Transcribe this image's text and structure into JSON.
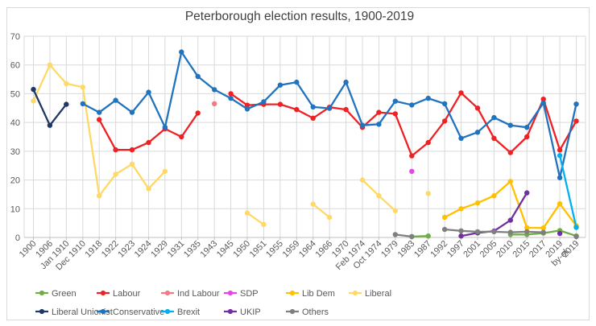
{
  "chart_data": {
    "type": "line",
    "title": "Peterborough election results, 1900-2019",
    "categories": [
      "1900",
      "1906",
      "Jan 1910",
      "Dec 1910",
      "1918",
      "1922",
      "1923",
      "1924",
      "1929",
      "1931",
      "1935",
      "1943",
      "1945",
      "1950",
      "1951",
      "1955",
      "1959",
      "1964",
      "1966",
      "1970",
      "Feb 1974",
      "Oct 1974",
      "1979",
      "1983",
      "1987",
      "1992",
      "1997",
      "2001",
      "2005",
      "2010",
      "2015",
      "2017",
      "2019\nby-el.",
      "2019"
    ],
    "y_axis": {
      "min": 0,
      "max": 70,
      "step": 10
    },
    "grid": true,
    "legend_position": "bottom",
    "series": [
      {
        "name": "Green",
        "color": "#70AD47",
        "values": [
          null,
          null,
          null,
          null,
          null,
          null,
          null,
          null,
          null,
          null,
          null,
          null,
          null,
          null,
          null,
          null,
          null,
          null,
          null,
          null,
          null,
          null,
          null,
          0.3,
          0.5,
          null,
          null,
          null,
          null,
          1,
          1,
          1.5,
          2.4,
          0.5
        ]
      },
      {
        "name": "Labour",
        "color": "#EE2125",
        "values": [
          null,
          null,
          null,
          null,
          41,
          30.5,
          30.5,
          33,
          37.8,
          35,
          43.3,
          null,
          50,
          46,
          46.3,
          46.3,
          44.5,
          41.5,
          45.3,
          44.5,
          38.3,
          43.5,
          43,
          28.4,
          33,
          40.5,
          50.3,
          45,
          34.5,
          29.5,
          35,
          48.1,
          30.4,
          40.5
        ]
      },
      {
        "name": "Ind Labour",
        "color": "#F07B85",
        "values": [
          null,
          null,
          null,
          null,
          null,
          null,
          null,
          null,
          null,
          null,
          null,
          46.5,
          null,
          null,
          null,
          null,
          null,
          null,
          null,
          null,
          null,
          null,
          null,
          null,
          null,
          null,
          null,
          null,
          null,
          null,
          null,
          null,
          null,
          null
        ]
      },
      {
        "name": "SDP",
        "color": "#E546E5",
        "values": [
          null,
          null,
          null,
          null,
          null,
          null,
          null,
          null,
          null,
          null,
          null,
          null,
          null,
          null,
          null,
          null,
          null,
          null,
          null,
          null,
          null,
          null,
          null,
          23,
          null,
          null,
          null,
          null,
          null,
          null,
          null,
          null,
          null,
          null
        ]
      },
      {
        "name": "Lib Dem",
        "color": "#FFC000",
        "values": [
          null,
          null,
          null,
          null,
          null,
          null,
          null,
          null,
          null,
          null,
          null,
          null,
          null,
          null,
          null,
          null,
          null,
          null,
          null,
          null,
          null,
          null,
          null,
          null,
          null,
          7,
          10,
          12,
          14.5,
          19.5,
          3.4,
          3.3,
          11.7,
          4.1
        ]
      },
      {
        "name": "Liberal",
        "color": "#FFD966",
        "values": [
          47.5,
          60,
          53.5,
          52.3,
          14.5,
          22,
          25.5,
          17,
          23,
          null,
          null,
          null,
          null,
          8.5,
          4.5,
          null,
          null,
          11.6,
          7,
          null,
          20,
          14.5,
          9.3,
          null,
          15.3,
          null,
          null,
          null,
          null,
          null,
          null,
          null,
          null,
          null
        ]
      },
      {
        "name": "Liberal Unionist",
        "color": "#1F3864",
        "values": [
          51.5,
          39,
          46.3,
          null,
          null,
          null,
          null,
          null,
          null,
          null,
          null,
          null,
          null,
          null,
          null,
          null,
          null,
          null,
          null,
          null,
          null,
          null,
          null,
          null,
          null,
          null,
          null,
          null,
          null,
          null,
          null,
          null,
          null,
          null
        ]
      },
      {
        "name": "Conservative",
        "color": "#2173BE",
        "values": [
          null,
          null,
          null,
          46.5,
          43.5,
          47.7,
          43.5,
          50.5,
          38.3,
          64.5,
          56,
          51.4,
          48.4,
          44.7,
          47.2,
          53,
          54,
          45.4,
          44.9,
          54,
          39,
          39.4,
          47.4,
          46.1,
          48.4,
          46.5,
          34.5,
          36.6,
          41.7,
          39,
          38.3,
          46.8,
          20.8,
          46.4
        ]
      },
      {
        "name": "Brexit",
        "color": "#00B0F0",
        "values": [
          null,
          null,
          null,
          null,
          null,
          null,
          null,
          null,
          null,
          null,
          null,
          null,
          null,
          null,
          null,
          null,
          null,
          null,
          null,
          null,
          null,
          null,
          null,
          null,
          null,
          null,
          null,
          null,
          null,
          null,
          null,
          null,
          28.5,
          3.5
        ]
      },
      {
        "name": "UKIP",
        "color": "#7030A0",
        "values": [
          null,
          null,
          null,
          null,
          null,
          null,
          null,
          null,
          null,
          null,
          null,
          null,
          null,
          null,
          null,
          null,
          null,
          null,
          null,
          null,
          null,
          null,
          null,
          null,
          null,
          null,
          0.5,
          1.6,
          2.2,
          6,
          15.5,
          null,
          1.4,
          null
        ]
      },
      {
        "name": "Others",
        "color": "#7F7F7F",
        "values": [
          null,
          null,
          null,
          null,
          null,
          null,
          null,
          null,
          null,
          null,
          null,
          null,
          null,
          null,
          null,
          null,
          null,
          null,
          null,
          null,
          null,
          null,
          1,
          0.3,
          null,
          2.8,
          2.3,
          2,
          2,
          1.8,
          2,
          1.8,
          null,
          0.3
        ]
      }
    ],
    "legend_rows": [
      [
        "Green",
        "Labour",
        "Ind Labour",
        "SDP",
        "Lib Dem",
        "Liberal"
      ],
      [
        "Liberal Unionist",
        "Conservative",
        "Brexit",
        "UKIP",
        "Others"
      ]
    ]
  },
  "colors": {
    "grid": "#D9D9D9",
    "axis_line": "#BFBFBF",
    "axis_text": "#595959",
    "title_text": "#404040",
    "legend_text": "#595959",
    "border": "#D9D9D9",
    "background": "#FFFFFF"
  }
}
